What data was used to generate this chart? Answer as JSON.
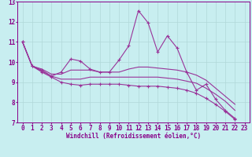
{
  "title": "",
  "xlabel": "Windchill (Refroidissement éolien,°C)",
  "background_color": "#c8eef0",
  "grid_color": "#b0d8d8",
  "line_color": "#993399",
  "xlim": [
    0,
    23
  ],
  "ylim": [
    7,
    13
  ],
  "xticks": [
    0,
    1,
    2,
    3,
    4,
    5,
    6,
    7,
    8,
    9,
    10,
    11,
    12,
    13,
    14,
    15,
    16,
    17,
    18,
    19,
    20,
    21,
    22,
    23
  ],
  "yticks": [
    7,
    8,
    9,
    10,
    11,
    12,
    13
  ],
  "series": [
    [
      11.0,
      9.8,
      9.6,
      9.3,
      9.5,
      10.15,
      10.05,
      9.65,
      9.5,
      9.5,
      10.1,
      10.8,
      12.55,
      11.95,
      10.5,
      11.3,
      10.7,
      9.5,
      8.6,
      8.9,
      8.15,
      7.6,
      7.2
    ],
    [
      11.0,
      9.8,
      9.65,
      9.4,
      9.4,
      9.6,
      9.6,
      9.6,
      9.5,
      9.5,
      9.5,
      9.65,
      9.75,
      9.75,
      9.7,
      9.65,
      9.6,
      9.5,
      9.35,
      9.1,
      8.7,
      8.3,
      7.9
    ],
    [
      11.0,
      9.8,
      9.55,
      9.3,
      9.15,
      9.15,
      9.15,
      9.25,
      9.25,
      9.25,
      9.25,
      9.25,
      9.25,
      9.25,
      9.25,
      9.2,
      9.15,
      9.05,
      8.95,
      8.7,
      8.4,
      8.05,
      7.6
    ],
    [
      11.0,
      9.8,
      9.5,
      9.25,
      9.0,
      8.9,
      8.85,
      8.9,
      8.9,
      8.9,
      8.9,
      8.85,
      8.8,
      8.8,
      8.8,
      8.75,
      8.7,
      8.6,
      8.45,
      8.2,
      7.9,
      7.55,
      7.15
    ]
  ],
  "has_markers": [
    true,
    false,
    false,
    true
  ],
  "font_color": "#880088",
  "font_size": 5.5,
  "tick_font_size": 5.5,
  "linewidth": 0.8
}
